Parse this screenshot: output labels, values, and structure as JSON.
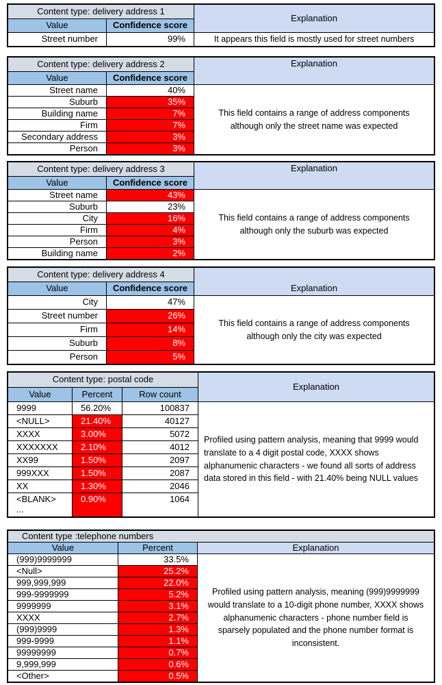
{
  "colors": {
    "title_bg": "#D6DCE5",
    "header_bg": "#9DC3E6",
    "explanation_header_bg": "#CEDBF2",
    "flag_red": "#FF0000",
    "flag_text": "#FFFFFF",
    "border": "#000000"
  },
  "report": {
    "tables": [
      {
        "id": "delivery-address-1",
        "title": "Content type: delivery address 1",
        "columns": [
          "Value",
          "Confidence score"
        ],
        "explanation_header": "Explanation",
        "rows": [
          {
            "cells": [
              "Street number",
              "99%"
            ],
            "flag": false
          }
        ],
        "explanation": "It appears this field is mostly used for street numbers"
      },
      {
        "id": "delivery-address-2",
        "title": "Content type: delivery address 2",
        "columns": [
          "Value",
          "Confidence score"
        ],
        "explanation_header": "Explanation",
        "rows": [
          {
            "cells": [
              "Street name",
              "40%"
            ],
            "flag": false
          },
          {
            "cells": [
              "Suburb",
              "35%"
            ],
            "flag": true
          },
          {
            "cells": [
              "Building name",
              "7%"
            ],
            "flag": true
          },
          {
            "cells": [
              "Firm",
              "7%"
            ],
            "flag": true
          },
          {
            "cells": [
              "Secondary address",
              "3%"
            ],
            "flag": true
          },
          {
            "cells": [
              "Person",
              "3%"
            ],
            "flag": true
          }
        ],
        "explanation": "This field contains a range of address components although only the street name was expected"
      },
      {
        "id": "delivery-address-3",
        "title": "Content type: delivery address 3",
        "columns": [
          "Value",
          "Confidence score"
        ],
        "explanation_header": "Explanation",
        "rows": [
          {
            "cells": [
              "Street name",
              "43%"
            ],
            "flag": true
          },
          {
            "cells": [
              "Suburb",
              "23%"
            ],
            "flag": false
          },
          {
            "cells": [
              "City",
              "16%"
            ],
            "flag": true
          },
          {
            "cells": [
              "Firm",
              "4%"
            ],
            "flag": true
          },
          {
            "cells": [
              "Person",
              "3%"
            ],
            "flag": true
          },
          {
            "cells": [
              "Building name",
              "2%"
            ],
            "flag": true
          }
        ],
        "explanation": "This field contains a range of address components although only the suburb was expected"
      },
      {
        "id": "delivery-address-4",
        "title": "Content type: delivery address 4",
        "columns": [
          "Value",
          "Confidence score"
        ],
        "explanation_header": "Explanation",
        "rows": [
          {
            "cells": [
              "City",
              "47%"
            ],
            "flag": false
          },
          {
            "cells": [
              "Street number",
              "26%"
            ],
            "flag": true
          },
          {
            "cells": [
              "Firm",
              "14%"
            ],
            "flag": true
          },
          {
            "cells": [
              "Suburb",
              "8%"
            ],
            "flag": true
          },
          {
            "cells": [
              "Person",
              "5%"
            ],
            "flag": true
          }
        ],
        "explanation": "This field contains a range of address components although only the city was expected"
      },
      {
        "id": "postal-code",
        "title": "Content type: postal code",
        "columns": [
          "Value",
          "Percent",
          "Row count"
        ],
        "explanation_header": "Explanation",
        "rows": [
          {
            "cells": [
              "9999",
              "56.20%",
              "100837"
            ],
            "flag": false
          },
          {
            "cells": [
              "<NULL>",
              "21.40%",
              "40127"
            ],
            "flag": true
          },
          {
            "cells": [
              "XXXX",
              "3.00%",
              "5072"
            ],
            "flag": true
          },
          {
            "cells": [
              "XXXXXXX",
              "2.10%",
              "4012"
            ],
            "flag": true
          },
          {
            "cells": [
              "XX99",
              "1.50%",
              "2097"
            ],
            "flag": true
          },
          {
            "cells": [
              "999XXX",
              "1.50%",
              "2087"
            ],
            "flag": true
          },
          {
            "cells": [
              "XX",
              "1.30%",
              "2046"
            ],
            "flag": true
          },
          {
            "cells": [
              "<BLANK>\n...",
              "0.90%",
              "1064"
            ],
            "flag": true,
            "tall": true
          }
        ],
        "explanation": "Profiled using pattern analysis, meaning that 9999 would translate to a 4 digit postal code, XXXX shows alphanumenic characters -  we found all sorts of address data stored in this field - with 21.40% being NULL values"
      },
      {
        "id": "telephone-numbers",
        "title": "Content type :telephone numbers",
        "columns": [
          "Value",
          "Percent"
        ],
        "explanation_header": "Explanation",
        "rows": [
          {
            "cells": [
              "(999)9999999",
              "33.5%"
            ],
            "flag": false
          },
          {
            "cells": [
              "<Null>",
              "25.2%"
            ],
            "flag": true
          },
          {
            "cells": [
              "999,999,999",
              "22.0%"
            ],
            "flag": true
          },
          {
            "cells": [
              "999-9999999",
              "5.2%"
            ],
            "flag": true
          },
          {
            "cells": [
              "9999999",
              "3.1%"
            ],
            "flag": true
          },
          {
            "cells": [
              "XXXX",
              "2.7%"
            ],
            "flag": true
          },
          {
            "cells": [
              "(999)9999",
              "1.3%"
            ],
            "flag": true
          },
          {
            "cells": [
              "999-9999",
              "1.1%"
            ],
            "flag": true
          },
          {
            "cells": [
              "99999999",
              "0.7%"
            ],
            "flag": true
          },
          {
            "cells": [
              "9,999,999",
              "0.6%"
            ],
            "flag": true
          },
          {
            "cells": [
              "<Other>",
              "0.5%"
            ],
            "flag": true
          }
        ],
        "explanation": "Profiled using pattern analysis, meaning (999)9999999 would translate to a 10-digit phone number, XXXX shows alphanumenic characters  - phone number field is sparsely populated and the phone number format is inconsistent."
      }
    ]
  }
}
